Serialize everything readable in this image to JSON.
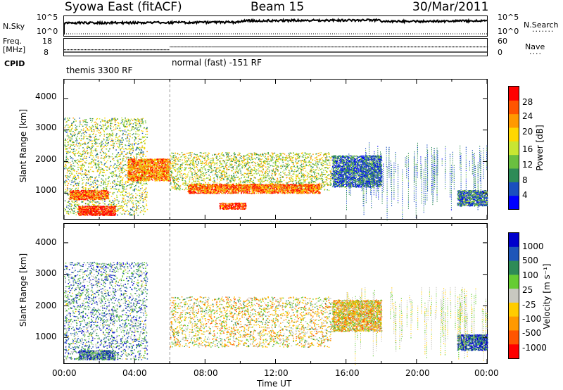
{
  "header": {
    "station": "Syowa East (fitACF)",
    "beam": "Beam 15",
    "date": "30/Mar/2011"
  },
  "summary": {
    "nsky_label": "N.Sky",
    "nsky_ticks": [
      "10^5",
      "10^0"
    ],
    "nsearch_label": "N.Search",
    "nsearch_ticks": [
      "10^5",
      "10^0"
    ],
    "freq_label": "Freq.",
    "freq_unit": "[MHz]",
    "freq_ticks": [
      "18",
      "8"
    ],
    "nave_label": "Nave",
    "nave_ticks": [
      "60",
      "0"
    ],
    "cpid_label": "CPID",
    "cpid_segments": [
      {
        "name": "themis 3300 RF",
        "start_hour": 0,
        "end_hour": 6
      },
      {
        "name": "normal (fast) -151 RF",
        "start_hour": 6,
        "end_hour": 24
      }
    ]
  },
  "chart_data": [
    {
      "type": "heatmap",
      "title": "",
      "ylabel": "Slant Range [km]",
      "xlabel": "",
      "xlim": [
        0,
        24
      ],
      "ylim": [
        180,
        4600
      ],
      "yticks": [
        "1000",
        "2000",
        "3000",
        "4000"
      ],
      "colorbar": {
        "label": "Power [dB]",
        "ticks": [
          "4",
          "8",
          "12",
          "16",
          "20",
          "24",
          "28"
        ],
        "range": [
          0,
          30
        ],
        "colors": [
          "#0000ff",
          "#1a4fbf",
          "#2e8b57",
          "#6abf40",
          "#c8e632",
          "#ffd700",
          "#ff9900",
          "#ff5500",
          "#ff0000"
        ]
      },
      "regions": [
        {
          "t0": 0.0,
          "t1": 4.7,
          "r0": 300,
          "r1": 3400,
          "level": 0.45
        },
        {
          "t0": 0.8,
          "t1": 2.9,
          "r0": 300,
          "r1": 600,
          "level": 0.95
        },
        {
          "t0": 0.3,
          "t1": 2.5,
          "r0": 800,
          "r1": 1100,
          "level": 0.8
        },
        {
          "t0": 3.6,
          "t1": 6.0,
          "r0": 1400,
          "r1": 2100,
          "level": 0.75
        },
        {
          "t0": 6.0,
          "t1": 15.2,
          "r0": 1100,
          "r1": 2300,
          "level": 0.5
        },
        {
          "t0": 7.0,
          "t1": 14.5,
          "r0": 1000,
          "r1": 1300,
          "level": 0.8
        },
        {
          "t0": 8.8,
          "t1": 10.3,
          "r0": 500,
          "r1": 700,
          "level": 0.9
        },
        {
          "t0": 15.2,
          "t1": 18.0,
          "r0": 1200,
          "r1": 2200,
          "level": 0.2
        },
        {
          "t0": 22.3,
          "t1": 24.0,
          "r0": 600,
          "r1": 1100,
          "level": 0.25
        }
      ]
    },
    {
      "type": "heatmap",
      "title": "",
      "ylabel": "Slant Range [km]",
      "xlabel": "Time UT",
      "xlim": [
        0,
        24
      ],
      "ylim": [
        180,
        4600
      ],
      "yticks": [
        "1000",
        "2000",
        "3000",
        "4000"
      ],
      "xticks": [
        "00:00",
        "04:00",
        "08:00",
        "12:00",
        "16:00",
        "20:00",
        "00:00"
      ],
      "colorbar": {
        "label": "Velocity [m s⁻¹]",
        "ticks": [
          "1000",
          "500",
          "100",
          "25",
          "-25",
          "-100",
          "-500",
          "-1000"
        ],
        "colors": [
          "#0000cc",
          "#1f56b8",
          "#2e8b57",
          "#66cc33",
          "#c8c8c0",
          "#ffcc00",
          "#ff9900",
          "#ff5500",
          "#ff0000"
        ]
      },
      "regions": [
        {
          "t0": 0.0,
          "t1": 4.7,
          "r0": 300,
          "r1": 3400,
          "level": 0.7
        },
        {
          "t0": 0.8,
          "t1": 2.9,
          "r0": 300,
          "r1": 600,
          "level": 0.75
        },
        {
          "t0": 6.0,
          "t1": 15.2,
          "r0": 700,
          "r1": 2300,
          "level": 0.45
        },
        {
          "t0": 15.2,
          "t1": 18.0,
          "r0": 1200,
          "r1": 2200,
          "level": 0.4
        },
        {
          "t0": 22.3,
          "t1": 24.0,
          "r0": 600,
          "r1": 1100,
          "level": 0.85
        }
      ]
    }
  ]
}
